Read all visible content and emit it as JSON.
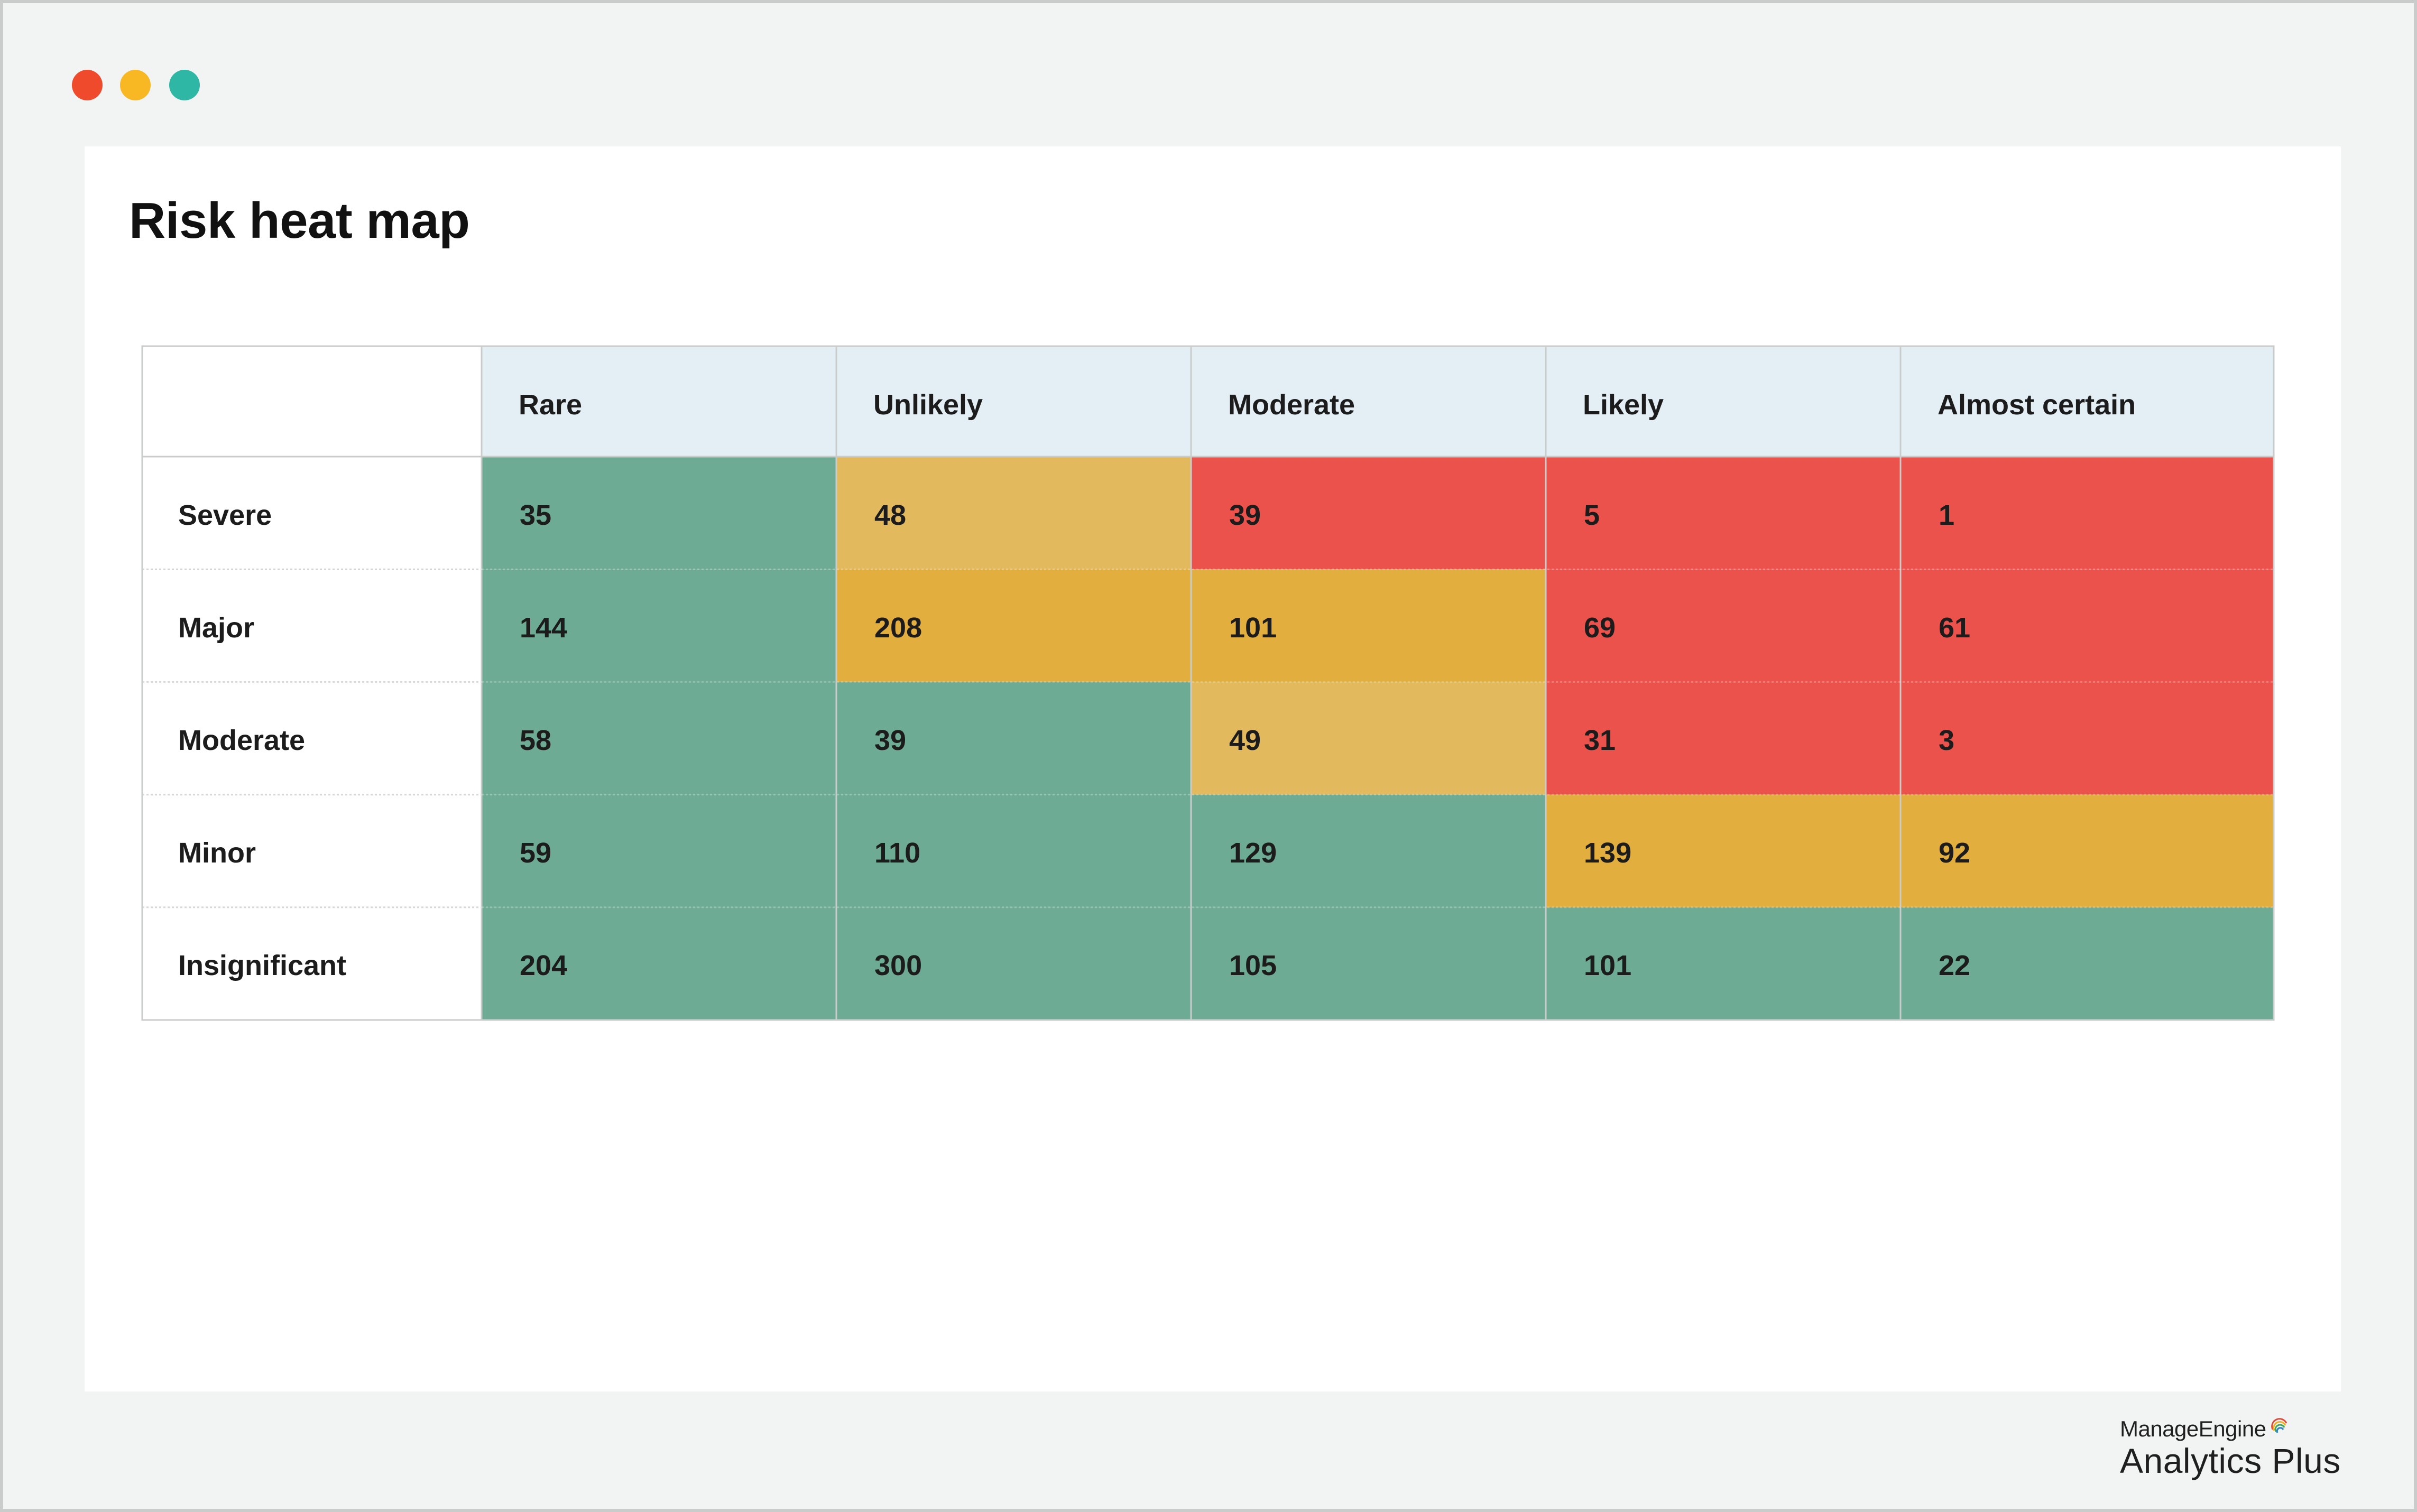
{
  "window": {
    "controls": [
      {
        "name": "close",
        "color": "#ef4a2b"
      },
      {
        "name": "minimize",
        "color": "#f7b823"
      },
      {
        "name": "maximize",
        "color": "#2db7a4"
      }
    ]
  },
  "page": {
    "title": "Risk heat map"
  },
  "colors": {
    "low": "#6dab94",
    "medium_light": "#e2b95c",
    "medium": "#e2ae3e",
    "high": "#eb524b",
    "header_bg": "#e3eff4",
    "border": "#c9cccb",
    "row_divider": "#d7d7d7"
  },
  "chart_data": {
    "type": "heatmap",
    "title": "Risk heat map",
    "x": [
      "Rare",
      "Unlikely",
      "Moderate",
      "Likely",
      "Almost certain"
    ],
    "y": [
      "Severe",
      "Major",
      "Moderate",
      "Minor",
      "Insignificant"
    ],
    "values": [
      [
        35,
        48,
        39,
        5,
        1
      ],
      [
        144,
        208,
        101,
        69,
        61
      ],
      [
        58,
        39,
        49,
        31,
        3
      ],
      [
        59,
        110,
        129,
        139,
        92
      ],
      [
        204,
        300,
        105,
        101,
        22
      ]
    ],
    "risk_levels": [
      [
        "low",
        "medium_light",
        "high",
        "high",
        "high"
      ],
      [
        "low",
        "medium",
        "medium",
        "high",
        "high"
      ],
      [
        "low",
        "low",
        "medium_light",
        "high",
        "high"
      ],
      [
        "low",
        "low",
        "low",
        "medium",
        "medium"
      ],
      [
        "low",
        "low",
        "low",
        "low",
        "low"
      ]
    ],
    "legend": "none",
    "grid": true
  },
  "brand": {
    "company": "ManageEngine",
    "product": "Analytics Plus",
    "logo_icon": "swirl-logo-icon"
  }
}
